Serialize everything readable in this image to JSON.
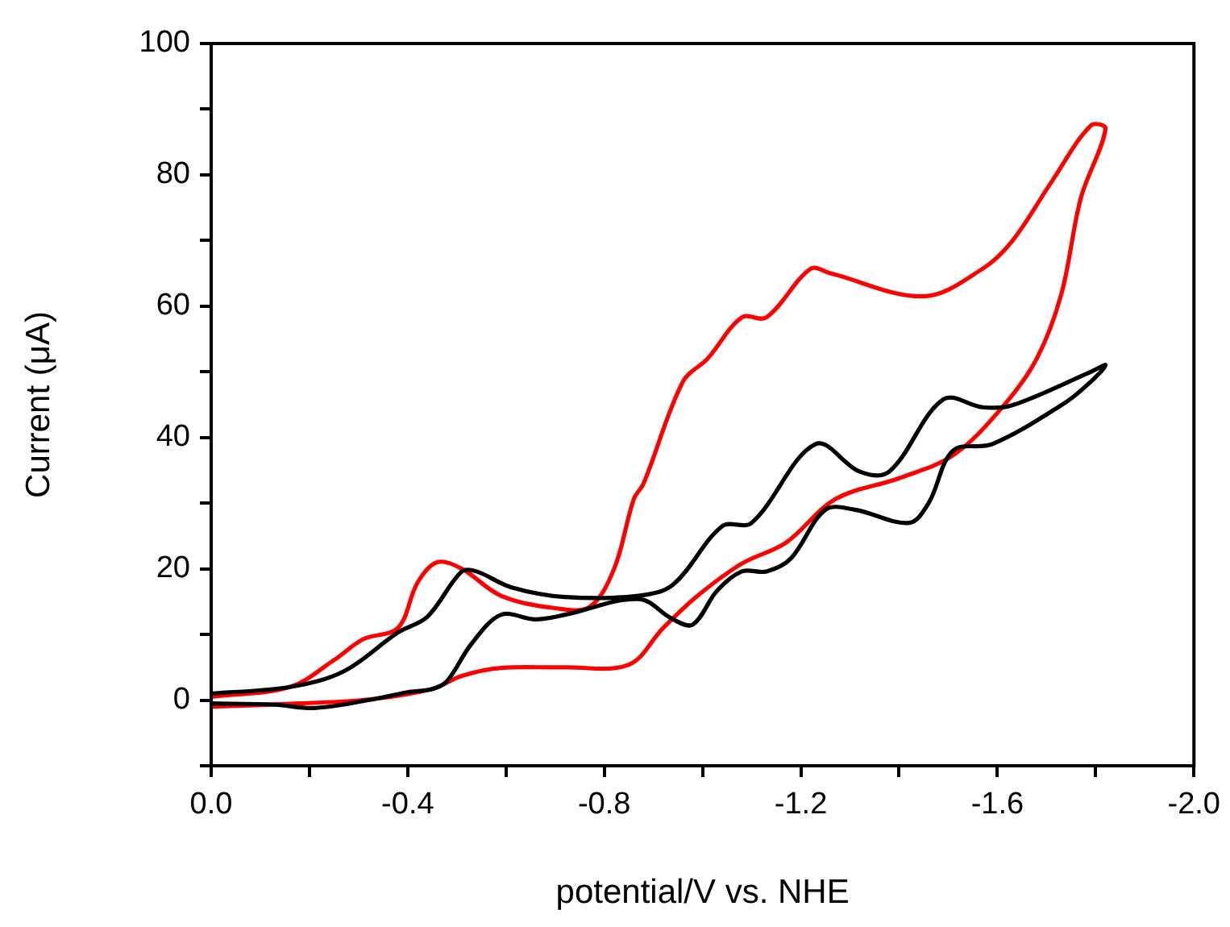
{
  "chart_data": {
    "type": "line",
    "xlabel": "potential/V vs. NHE",
    "ylabel": "Current (μA)",
    "xlim": [
      0,
      -2
    ],
    "ylim": [
      -10,
      100
    ],
    "xticks": [
      {
        "value": 0,
        "label": "0.0"
      },
      {
        "value": -0.2,
        "label": null
      },
      {
        "value": -0.4,
        "label": "-0.4"
      },
      {
        "value": -0.6,
        "label": null
      },
      {
        "value": -0.8,
        "label": "-0.8"
      },
      {
        "value": -1,
        "label": null
      },
      {
        "value": -1.2,
        "label": "-1.2"
      },
      {
        "value": -1.4,
        "label": null
      },
      {
        "value": -1.6,
        "label": "-1.6"
      },
      {
        "value": -1.8,
        "label": null
      },
      {
        "value": -2,
        "label": "-2.0"
      }
    ],
    "yticks": [
      {
        "value": -10,
        "label": null
      },
      0,
      {
        "value": 10,
        "label": null
      },
      20,
      {
        "value": 30,
        "label": null
      },
      40,
      {
        "value": 50,
        "label": null
      },
      60,
      {
        "value": 70,
        "label": null
      },
      80,
      {
        "value": 90,
        "label": null
      },
      100
    ],
    "grid": false,
    "legend": false,
    "marker": "none",
    "line_style": "solid",
    "series": [
      {
        "color": "#000000",
        "x": [
          0,
          -0.16,
          -0.27,
          -0.38,
          -0.44,
          -0.51,
          -0.54,
          -0.61,
          -0.72,
          -0.87,
          -0.94,
          -1.04,
          -1.1,
          -1.23,
          -1.32,
          -1.38,
          -1.49,
          -1.57,
          -1.63,
          -1.79,
          -1.82,
          -1.78,
          -1.73,
          -1.59,
          -1.51,
          -1.46,
          -1.42,
          -1.31,
          -1.25,
          -1.18,
          -1.13,
          -1.08,
          -1.03,
          -0.98,
          -0.94,
          -0.87,
          -0.72,
          -0.66,
          -0.59,
          -0.53,
          -0.48,
          -0.45,
          -0.4,
          -0.32,
          -0.21,
          -0.13,
          0
        ],
        "values": [
          1,
          2,
          4.4,
          10.3,
          12.7,
          19.6,
          19.6,
          17.2,
          15.7,
          15.9,
          17.6,
          26.5,
          27,
          39,
          34.8,
          34.8,
          45.8,
          44.6,
          44.9,
          50,
          51,
          47.8,
          44.9,
          39,
          38,
          30,
          27,
          29,
          29,
          21.6,
          19.6,
          19.6,
          16.7,
          11.5,
          12.3,
          15.4,
          13,
          12.3,
          13,
          8.6,
          2.9,
          1.7,
          1.2,
          0,
          -1.2,
          -0.7,
          -0.5
        ]
      },
      {
        "color": "#ff0000",
        "x": [
          0,
          -0.16,
          -0.25,
          -0.31,
          -0.38,
          -0.42,
          -0.46,
          -0.51,
          -0.59,
          -0.7,
          -0.77,
          -0.82,
          -0.86,
          -0.88,
          -0.96,
          -1.01,
          -1.08,
          -1.13,
          -1.22,
          -1.26,
          -1.45,
          -1.57,
          -1.63,
          -1.71,
          -1.79,
          -1.82,
          -1.77,
          -1.73,
          -1.68,
          -1.61,
          -1.51,
          -1.4,
          -1.27,
          -1.17,
          -1.08,
          -0.99,
          -0.92,
          -0.85,
          -0.72,
          -0.59,
          -0.51,
          -0.45,
          -0.32,
          -0.18,
          0
        ],
        "values": [
          0.5,
          2,
          6.1,
          9.3,
          11,
          17.9,
          21,
          20,
          15.9,
          14,
          14.2,
          20,
          30.6,
          33,
          48.5,
          52,
          58.3,
          58.3,
          65.7,
          65,
          61.5,
          65.7,
          69.9,
          78.9,
          87.5,
          87,
          76.5,
          61.8,
          52,
          44.6,
          37.3,
          33.8,
          30.6,
          24,
          20.8,
          15.9,
          11,
          5.4,
          5,
          4.9,
          3.7,
          1.7,
          0.1,
          -0.5,
          -1
        ]
      }
    ]
  }
}
